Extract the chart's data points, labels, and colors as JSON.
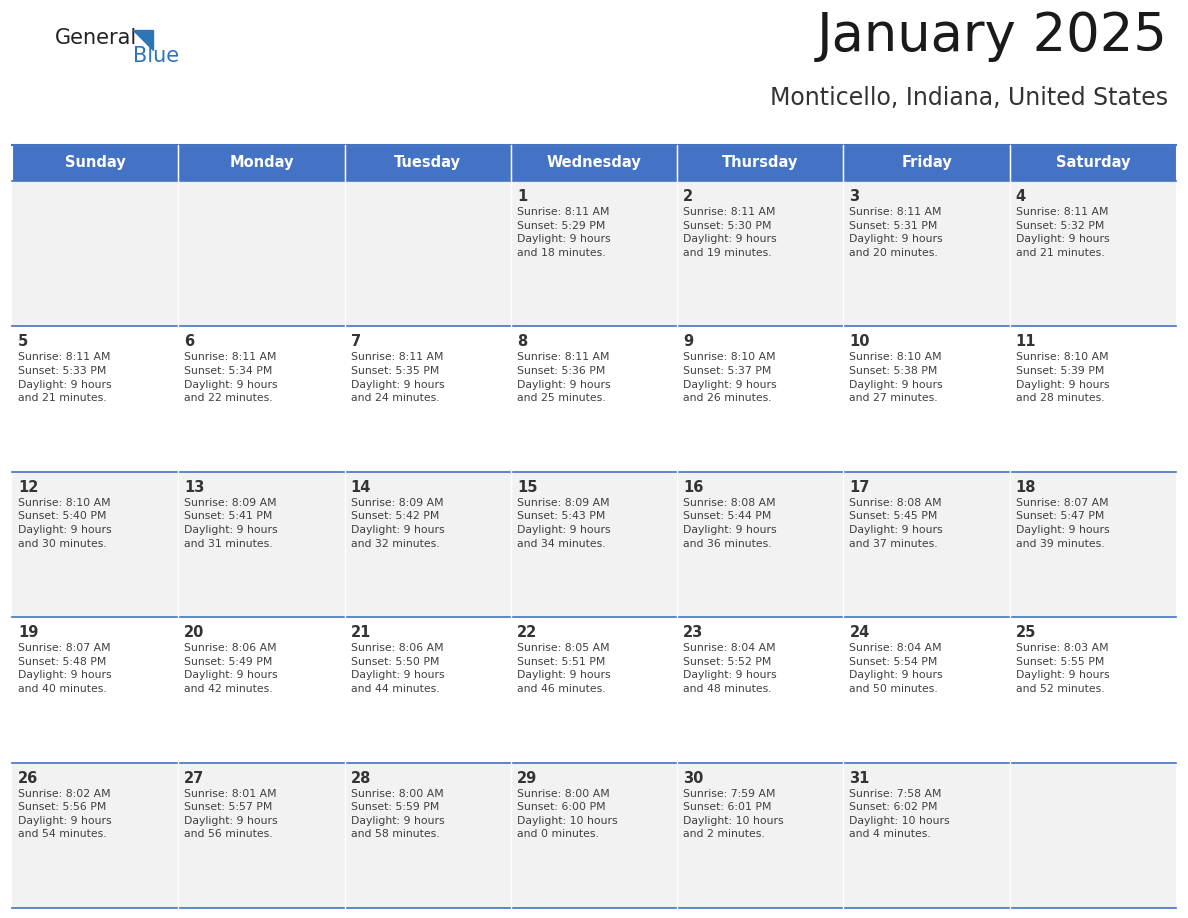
{
  "title": "January 2025",
  "subtitle": "Monticello, Indiana, United States",
  "days_of_week": [
    "Sunday",
    "Monday",
    "Tuesday",
    "Wednesday",
    "Thursday",
    "Friday",
    "Saturday"
  ],
  "header_bg": "#4472C4",
  "header_text_color": "#FFFFFF",
  "row_bg_odd": "#F2F2F2",
  "row_bg_even": "#FFFFFF",
  "cell_text_color": "#404040",
  "day_number_color": "#333333",
  "border_color": "#4472C4",
  "title_color": "#1a1a1a",
  "subtitle_color": "#333333",
  "generalblue_text_color": "#222222",
  "blue_text_color": "#2E75B6",
  "calendar_data": [
    [
      {
        "day": null,
        "info": ""
      },
      {
        "day": null,
        "info": ""
      },
      {
        "day": null,
        "info": ""
      },
      {
        "day": 1,
        "info": "Sunrise: 8:11 AM\nSunset: 5:29 PM\nDaylight: 9 hours\nand 18 minutes."
      },
      {
        "day": 2,
        "info": "Sunrise: 8:11 AM\nSunset: 5:30 PM\nDaylight: 9 hours\nand 19 minutes."
      },
      {
        "day": 3,
        "info": "Sunrise: 8:11 AM\nSunset: 5:31 PM\nDaylight: 9 hours\nand 20 minutes."
      },
      {
        "day": 4,
        "info": "Sunrise: 8:11 AM\nSunset: 5:32 PM\nDaylight: 9 hours\nand 21 minutes."
      }
    ],
    [
      {
        "day": 5,
        "info": "Sunrise: 8:11 AM\nSunset: 5:33 PM\nDaylight: 9 hours\nand 21 minutes."
      },
      {
        "day": 6,
        "info": "Sunrise: 8:11 AM\nSunset: 5:34 PM\nDaylight: 9 hours\nand 22 minutes."
      },
      {
        "day": 7,
        "info": "Sunrise: 8:11 AM\nSunset: 5:35 PM\nDaylight: 9 hours\nand 24 minutes."
      },
      {
        "day": 8,
        "info": "Sunrise: 8:11 AM\nSunset: 5:36 PM\nDaylight: 9 hours\nand 25 minutes."
      },
      {
        "day": 9,
        "info": "Sunrise: 8:10 AM\nSunset: 5:37 PM\nDaylight: 9 hours\nand 26 minutes."
      },
      {
        "day": 10,
        "info": "Sunrise: 8:10 AM\nSunset: 5:38 PM\nDaylight: 9 hours\nand 27 minutes."
      },
      {
        "day": 11,
        "info": "Sunrise: 8:10 AM\nSunset: 5:39 PM\nDaylight: 9 hours\nand 28 minutes."
      }
    ],
    [
      {
        "day": 12,
        "info": "Sunrise: 8:10 AM\nSunset: 5:40 PM\nDaylight: 9 hours\nand 30 minutes."
      },
      {
        "day": 13,
        "info": "Sunrise: 8:09 AM\nSunset: 5:41 PM\nDaylight: 9 hours\nand 31 minutes."
      },
      {
        "day": 14,
        "info": "Sunrise: 8:09 AM\nSunset: 5:42 PM\nDaylight: 9 hours\nand 32 minutes."
      },
      {
        "day": 15,
        "info": "Sunrise: 8:09 AM\nSunset: 5:43 PM\nDaylight: 9 hours\nand 34 minutes."
      },
      {
        "day": 16,
        "info": "Sunrise: 8:08 AM\nSunset: 5:44 PM\nDaylight: 9 hours\nand 36 minutes."
      },
      {
        "day": 17,
        "info": "Sunrise: 8:08 AM\nSunset: 5:45 PM\nDaylight: 9 hours\nand 37 minutes."
      },
      {
        "day": 18,
        "info": "Sunrise: 8:07 AM\nSunset: 5:47 PM\nDaylight: 9 hours\nand 39 minutes."
      }
    ],
    [
      {
        "day": 19,
        "info": "Sunrise: 8:07 AM\nSunset: 5:48 PM\nDaylight: 9 hours\nand 40 minutes."
      },
      {
        "day": 20,
        "info": "Sunrise: 8:06 AM\nSunset: 5:49 PM\nDaylight: 9 hours\nand 42 minutes."
      },
      {
        "day": 21,
        "info": "Sunrise: 8:06 AM\nSunset: 5:50 PM\nDaylight: 9 hours\nand 44 minutes."
      },
      {
        "day": 22,
        "info": "Sunrise: 8:05 AM\nSunset: 5:51 PM\nDaylight: 9 hours\nand 46 minutes."
      },
      {
        "day": 23,
        "info": "Sunrise: 8:04 AM\nSunset: 5:52 PM\nDaylight: 9 hours\nand 48 minutes."
      },
      {
        "day": 24,
        "info": "Sunrise: 8:04 AM\nSunset: 5:54 PM\nDaylight: 9 hours\nand 50 minutes."
      },
      {
        "day": 25,
        "info": "Sunrise: 8:03 AM\nSunset: 5:55 PM\nDaylight: 9 hours\nand 52 minutes."
      }
    ],
    [
      {
        "day": 26,
        "info": "Sunrise: 8:02 AM\nSunset: 5:56 PM\nDaylight: 9 hours\nand 54 minutes."
      },
      {
        "day": 27,
        "info": "Sunrise: 8:01 AM\nSunset: 5:57 PM\nDaylight: 9 hours\nand 56 minutes."
      },
      {
        "day": 28,
        "info": "Sunrise: 8:00 AM\nSunset: 5:59 PM\nDaylight: 9 hours\nand 58 minutes."
      },
      {
        "day": 29,
        "info": "Sunrise: 8:00 AM\nSunset: 6:00 PM\nDaylight: 10 hours\nand 0 minutes."
      },
      {
        "day": 30,
        "info": "Sunrise: 7:59 AM\nSunset: 6:01 PM\nDaylight: 10 hours\nand 2 minutes."
      },
      {
        "day": 31,
        "info": "Sunrise: 7:58 AM\nSunset: 6:02 PM\nDaylight: 10 hours\nand 4 minutes."
      },
      {
        "day": null,
        "info": ""
      }
    ]
  ]
}
